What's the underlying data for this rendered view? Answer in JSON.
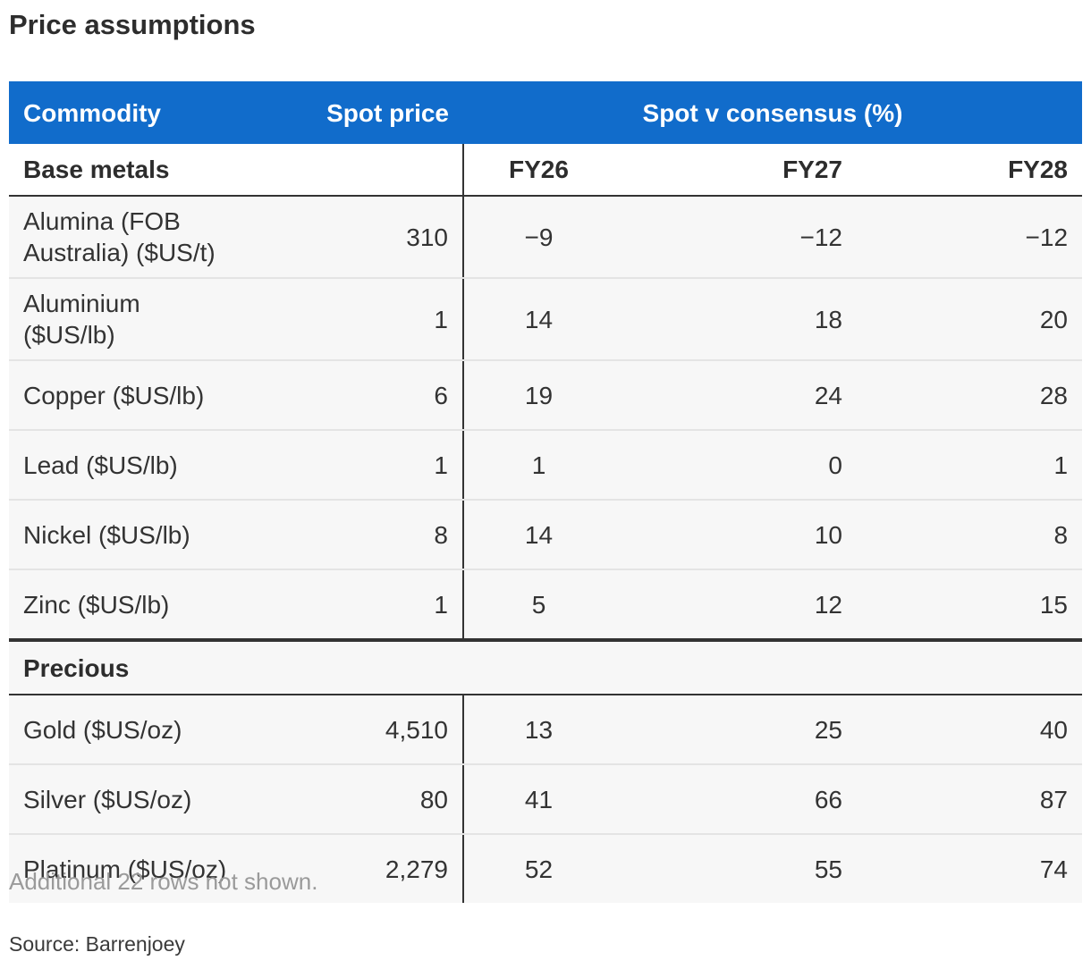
{
  "title": "Price assumptions",
  "chart_data": {
    "type": "table",
    "title": "Price assumptions",
    "columns": [
      "Commodity",
      "Spot price",
      "Spot v consensus (%)"
    ],
    "subcolumns": [
      "FY26",
      "FY27",
      "FY28"
    ],
    "groups": [
      {
        "name": "Base metals",
        "rows": [
          {
            "commodity": "Alumina (FOB Australia) ($US/t)",
            "spot": "310",
            "fy26": "−9",
            "fy27": "−12",
            "fy28": "−12"
          },
          {
            "commodity": "Aluminium ($US/lb)",
            "spot": "1",
            "fy26": "14",
            "fy27": "18",
            "fy28": "20"
          },
          {
            "commodity": "Copper ($US/lb)",
            "spot": "6",
            "fy26": "19",
            "fy27": "24",
            "fy28": "28"
          },
          {
            "commodity": "Lead ($US/lb)",
            "spot": "1",
            "fy26": "1",
            "fy27": "0",
            "fy28": "1"
          },
          {
            "commodity": "Nickel ($US/lb)",
            "spot": "8",
            "fy26": "14",
            "fy27": "10",
            "fy28": "8"
          },
          {
            "commodity": "Zinc ($US/lb)",
            "spot": "1",
            "fy26": "5",
            "fy27": "12",
            "fy28": "15"
          }
        ]
      },
      {
        "name": "Precious",
        "rows": [
          {
            "commodity": "Gold ($US/oz)",
            "spot": "4,510",
            "fy26": "13",
            "fy27": "25",
            "fy28": "40"
          },
          {
            "commodity": "Silver ($US/oz)",
            "spot": "80",
            "fy26": "41",
            "fy27": "66",
            "fy28": "87"
          },
          {
            "commodity": "Platinum ($US/oz)",
            "spot": "2,279",
            "fy26": "52",
            "fy27": "55",
            "fy28": "74"
          }
        ]
      }
    ]
  },
  "note": "Additional 22 rows not shown.",
  "source": "Source: Barrenjoey",
  "colors": {
    "header_bg": "#116ccb",
    "header_text": "#ffffff",
    "row_bg": "#f7f7f7",
    "rule": "#333333"
  }
}
